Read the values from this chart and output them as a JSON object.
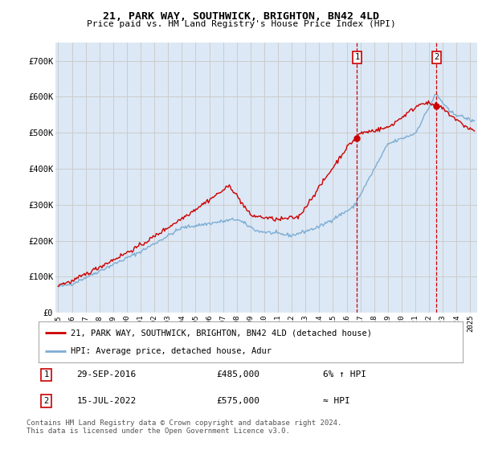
{
  "title": "21, PARK WAY, SOUTHWICK, BRIGHTON, BN42 4LD",
  "subtitle": "Price paid vs. HM Land Registry's House Price Index (HPI)",
  "legend_label_red": "21, PARK WAY, SOUTHWICK, BRIGHTON, BN42 4LD (detached house)",
  "legend_label_blue": "HPI: Average price, detached house, Adur",
  "annotation1_date": "29-SEP-2016",
  "annotation1_price": "£485,000",
  "annotation1_hpi": "6% ↑ HPI",
  "annotation2_date": "15-JUL-2022",
  "annotation2_price": "£575,000",
  "annotation2_hpi": "≈ HPI",
  "footer": "Contains HM Land Registry data © Crown copyright and database right 2024.\nThis data is licensed under the Open Government Licence v3.0.",
  "red_color": "#cc0000",
  "blue_color": "#7dadd4",
  "grid_color": "#cccccc",
  "background_color": "#ffffff",
  "plot_bg_color": "#dce8f5",
  "vline1_x": 2016.75,
  "vline2_x": 2022.54,
  "ylim": [
    0,
    750000
  ],
  "xlim_start": 1994.8,
  "xlim_end": 2025.5,
  "yticks": [
    0,
    100000,
    200000,
    300000,
    400000,
    500000,
    600000,
    700000
  ],
  "ytick_labels": [
    "£0",
    "£100K",
    "£200K",
    "£300K",
    "£400K",
    "£500K",
    "£600K",
    "£700K"
  ],
  "xtick_years": [
    1995,
    1996,
    1997,
    1998,
    1999,
    2000,
    2001,
    2002,
    2003,
    2004,
    2005,
    2006,
    2007,
    2008,
    2009,
    2010,
    2011,
    2012,
    2013,
    2014,
    2015,
    2016,
    2017,
    2018,
    2019,
    2020,
    2021,
    2022,
    2023,
    2024,
    2025
  ]
}
